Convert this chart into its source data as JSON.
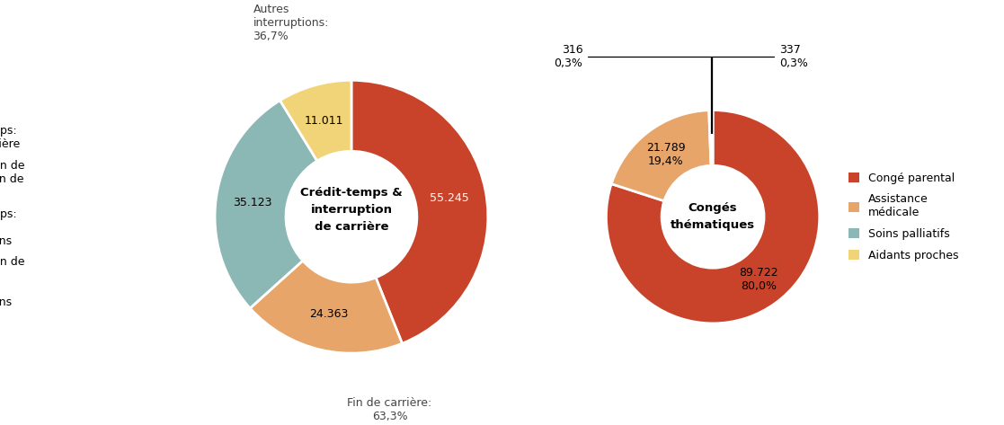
{
  "chart1": {
    "title": "Crédit-temps &\ninterruption\nde carrière",
    "values": [
      55245,
      24363,
      35123,
      11011
    ],
    "labels": [
      "55.245",
      "24.363",
      "35.123",
      "11.011"
    ],
    "label_colors": [
      "white",
      "black",
      "black",
      "black"
    ],
    "colors": [
      "#C8432A",
      "#E8A56A",
      "#8BB8B5",
      "#F2D478"
    ],
    "legend_labels": [
      "Crédit-temps:\nfin de carrière",
      "Interruption de\ncarrière: fin de\ncarrière",
      "Crédit-temps:\nautres\ninterruptions",
      "Interruption de\ncarrière:\nautres\ninterruptions"
    ],
    "group_label_fin": "Fin de carrière:\n63,3%",
    "group_label_autres": "Autres\ninterruptions:\n36,7%"
  },
  "chart2": {
    "title": "Congés\nthématiques",
    "values": [
      89722,
      21789,
      316,
      337
    ],
    "label_texts": [
      "89.722\n80,0%",
      "21.789\n19,4%",
      "316\n0,3%",
      "337\n0,3%"
    ],
    "colors": [
      "#C8432A",
      "#E8A56A",
      "#8BB8B5",
      "#F2D478"
    ],
    "legend_labels": [
      "Congé parental",
      "Assistance\nmédicale",
      "Soins palliatifs",
      "Aidants proches"
    ]
  }
}
